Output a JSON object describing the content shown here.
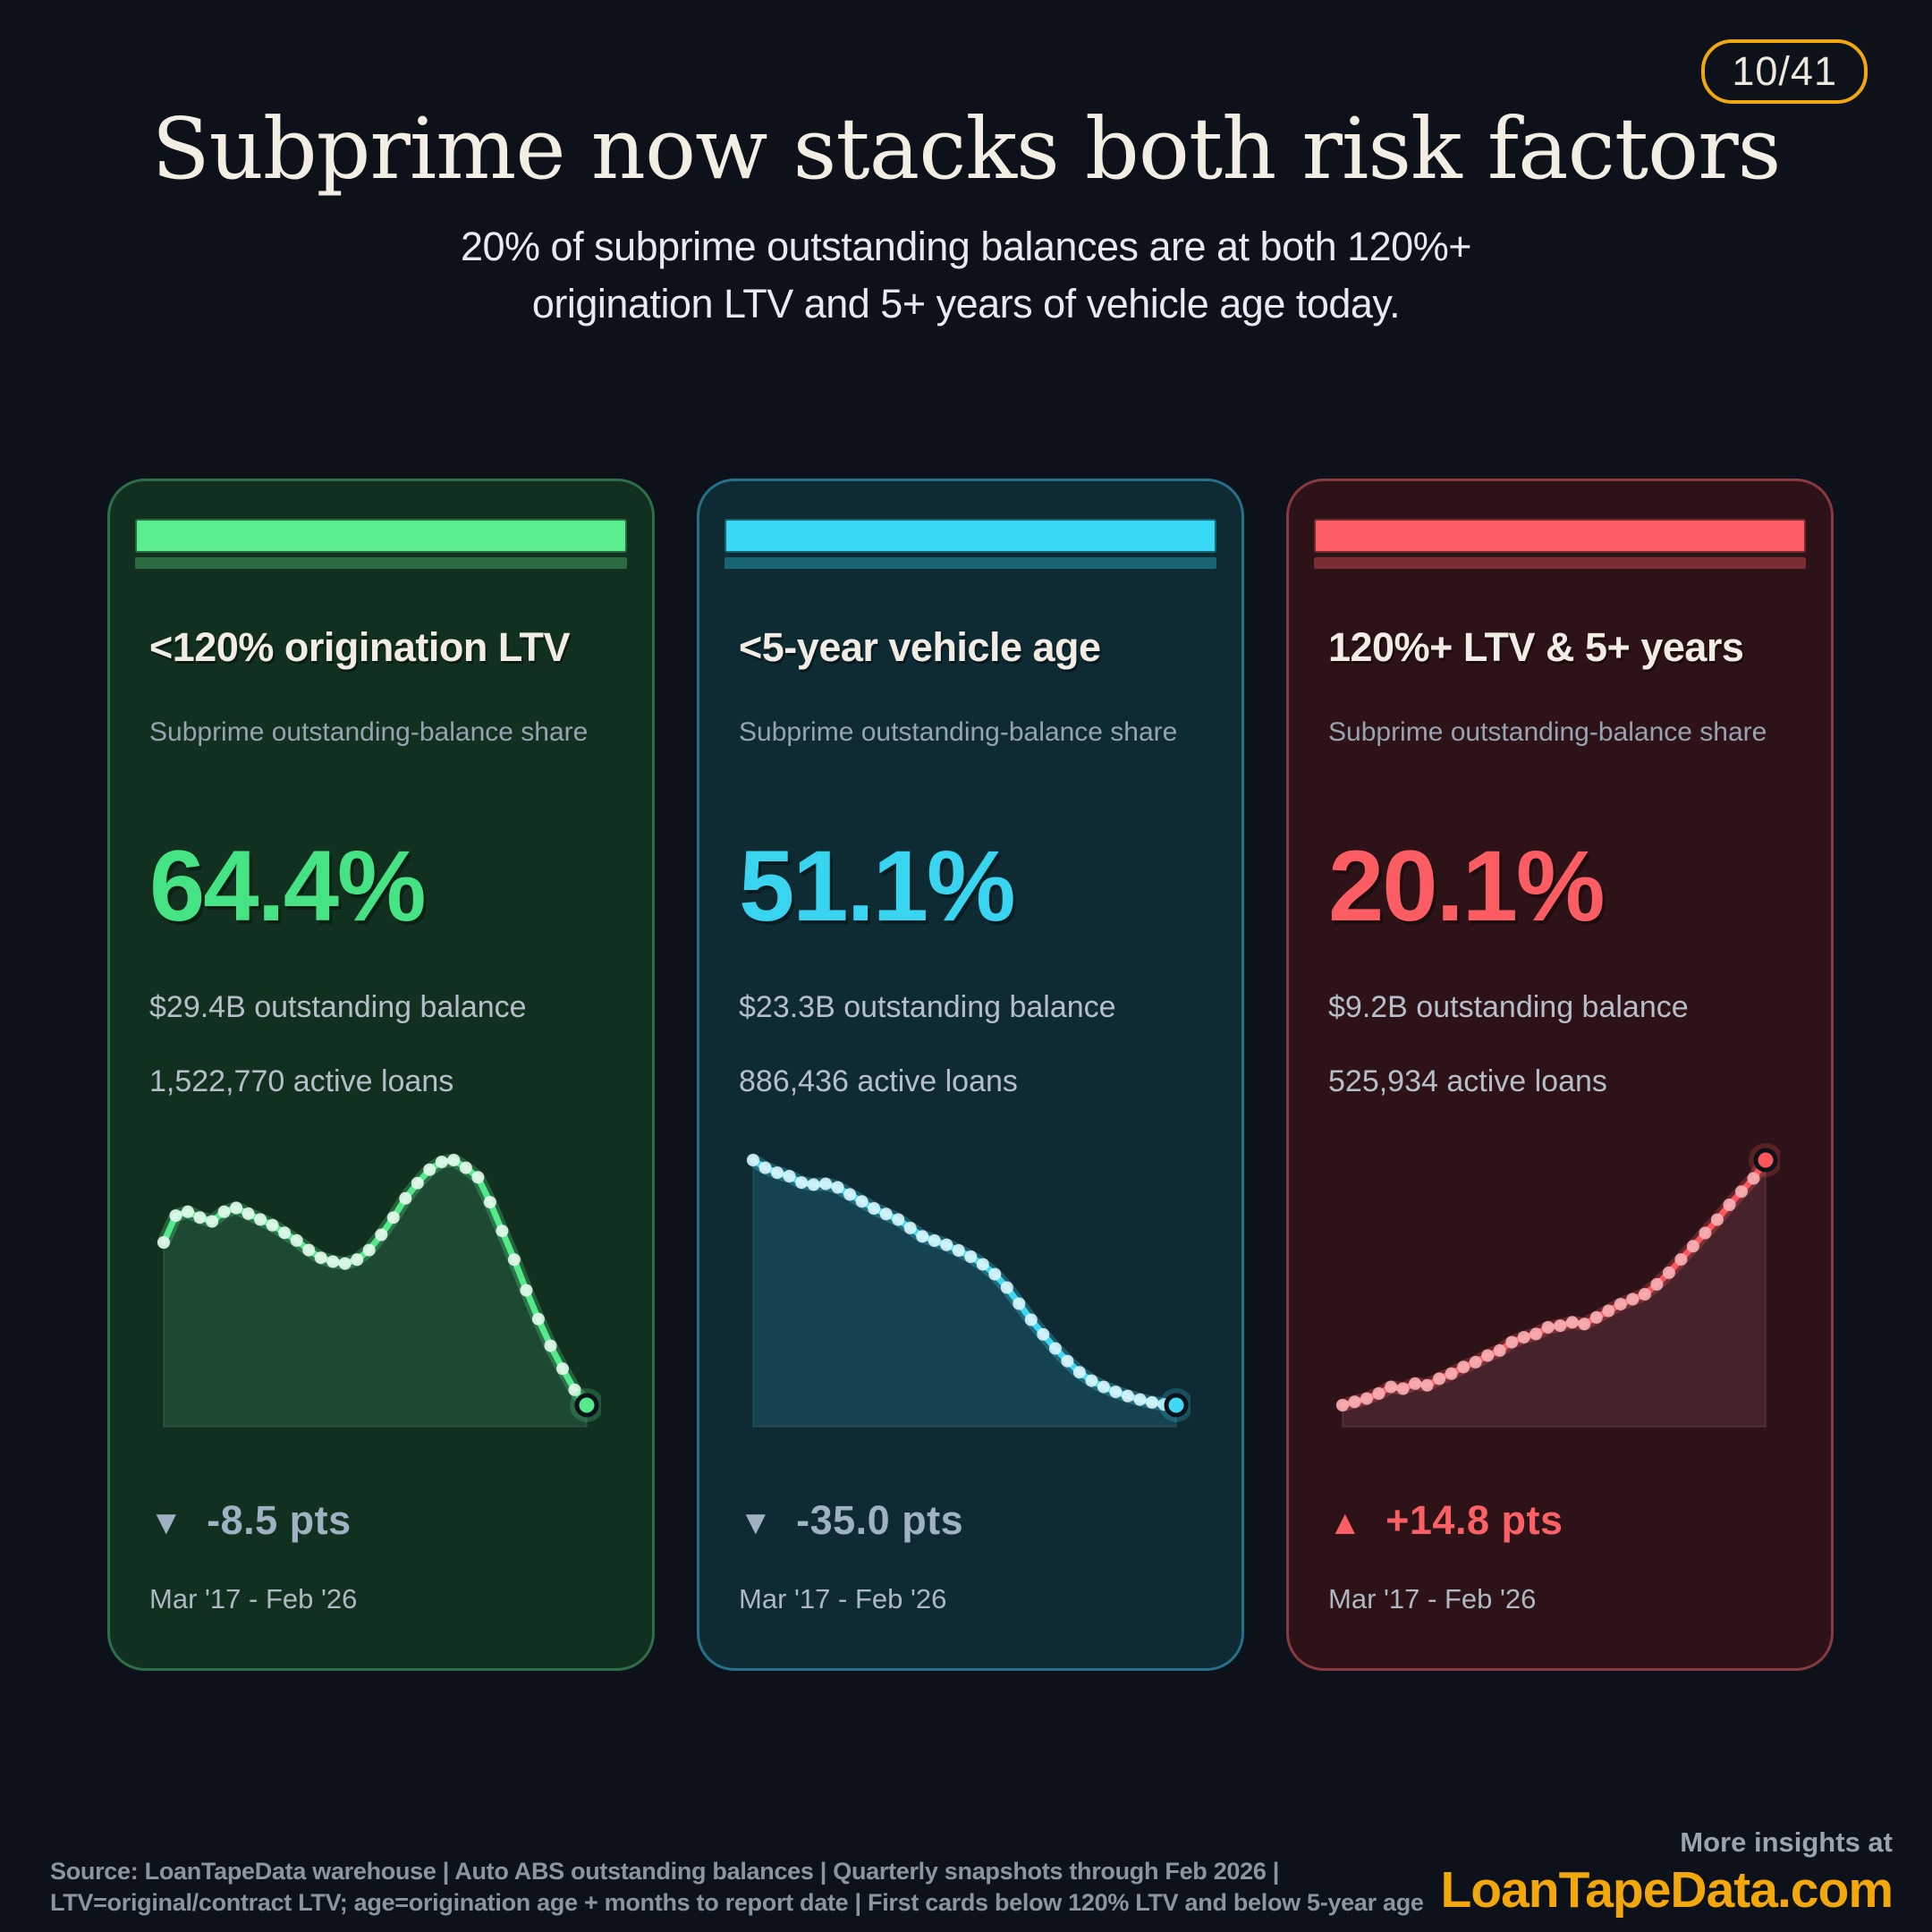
{
  "page": {
    "counter": "10/41",
    "title": "Subprime now stacks both risk factors",
    "subtitle_line1": "20% of subprime outstanding balances are at both 120%+",
    "subtitle_line2": "origination LTV and 5+ years of vehicle age today.",
    "accent_gold": "#f2a70c",
    "background": "#0d1119"
  },
  "cards": [
    {
      "title": "<120% origination LTV",
      "subtitle": "Subprime outstanding-balance share",
      "value": "64.4%",
      "balance": "$29.4B outstanding balance",
      "loans": "1,522,770 active loans",
      "delta_arrow": "▼",
      "delta": "-8.5 pts",
      "delta_direction": "down",
      "range": "Mar '17 - Feb '26",
      "accent": "#5aee8e"
    },
    {
      "title": "<5-year vehicle age",
      "subtitle": "Subprime outstanding-balance share",
      "value": "51.1%",
      "balance": "$23.3B outstanding balance",
      "loans": "886,436 active loans",
      "delta_arrow": "▼",
      "delta": "-35.0 pts",
      "delta_direction": "down",
      "range": "Mar '17 - Feb '26",
      "accent": "#39d8f4"
    },
    {
      "title": "120%+ LTV & 5+ years",
      "subtitle": "Subprime outstanding-balance share",
      "value": "20.1%",
      "balance": "$9.2B outstanding balance",
      "loans": "525,934 active loans",
      "delta_arrow": "▲",
      "delta": "+14.8 pts",
      "delta_direction": "up",
      "range": "Mar '17 - Feb '26",
      "accent": "#fb5d62"
    }
  ],
  "chart_data": [
    {
      "type": "area",
      "name": "<120% origination LTV share",
      "unit": "%",
      "cadence": "quarterly",
      "x_start": "Mar '17",
      "x_end": "Feb '26",
      "start_value": 72.9,
      "end_value": 64.4,
      "change_pts": -8.5,
      "values": [
        72.9,
        74.3,
        74.5,
        74.2,
        74.0,
        74.5,
        74.7,
        74.4,
        74.1,
        73.8,
        73.4,
        73.0,
        72.5,
        72.1,
        71.9,
        71.8,
        72.0,
        72.5,
        73.3,
        74.2,
        75.2,
        76.0,
        76.7,
        77.1,
        77.2,
        76.8,
        76.3,
        75.0,
        73.5,
        72.0,
        70.4,
        68.9,
        67.5,
        66.3,
        65.2,
        64.4
      ],
      "colors": {
        "line": "#55e98b",
        "dots": "#e7f8ee",
        "fill": "#1d4832"
      }
    },
    {
      "type": "area",
      "name": "<5-year vehicle age share",
      "unit": "%",
      "cadence": "quarterly",
      "x_start": "Mar '17",
      "x_end": "Feb '26",
      "start_value": 86.1,
      "end_value": 51.1,
      "change_pts": -35.0,
      "values": [
        86.1,
        85.0,
        84.3,
        83.8,
        82.9,
        82.6,
        82.7,
        82.2,
        81.2,
        80.2,
        79.2,
        78.4,
        77.6,
        76.4,
        75.2,
        74.6,
        74.0,
        73.2,
        72.3,
        71.2,
        69.8,
        67.9,
        65.6,
        63.3,
        61.2,
        59.2,
        57.4,
        55.8,
        54.6,
        53.7,
        53.0,
        52.4,
        51.9,
        51.5,
        51.2,
        51.1
      ],
      "colors": {
        "line": "#3fd9f3",
        "dots": "#dbf4fb",
        "fill": "#154250"
      }
    },
    {
      "type": "area",
      "name": "120%+ LTV & 5+ years share",
      "unit": "%",
      "cadence": "quarterly",
      "x_start": "Mar '17",
      "x_end": "Feb '26",
      "start_value": 5.3,
      "end_value": 20.1,
      "change_pts": 14.8,
      "values": [
        5.3,
        5.5,
        5.7,
        6.0,
        6.4,
        6.3,
        6.6,
        6.5,
        6.9,
        7.2,
        7.6,
        7.9,
        8.3,
        8.6,
        9.1,
        9.4,
        9.6,
        10.0,
        10.1,
        10.3,
        10.2,
        10.6,
        11.0,
        11.4,
        11.7,
        12.0,
        12.6,
        13.3,
        14.1,
        14.9,
        15.7,
        16.5,
        17.4,
        18.2,
        19.0,
        20.1
      ],
      "colors": {
        "line": "#fa575c",
        "dots": "#f6b3b6",
        "fill": "#46232a"
      }
    }
  ],
  "footer": {
    "source_line1": "Source: LoanTapeData warehouse | Auto ABS outstanding balances | Quarterly snapshots through Feb 2026 |",
    "source_line2": "LTV=original/contract LTV; age=origination age + months to report date | First cards below 120% LTV and below 5-year age",
    "more_insights": "More insights at",
    "site": "LoanTapeData.com"
  }
}
